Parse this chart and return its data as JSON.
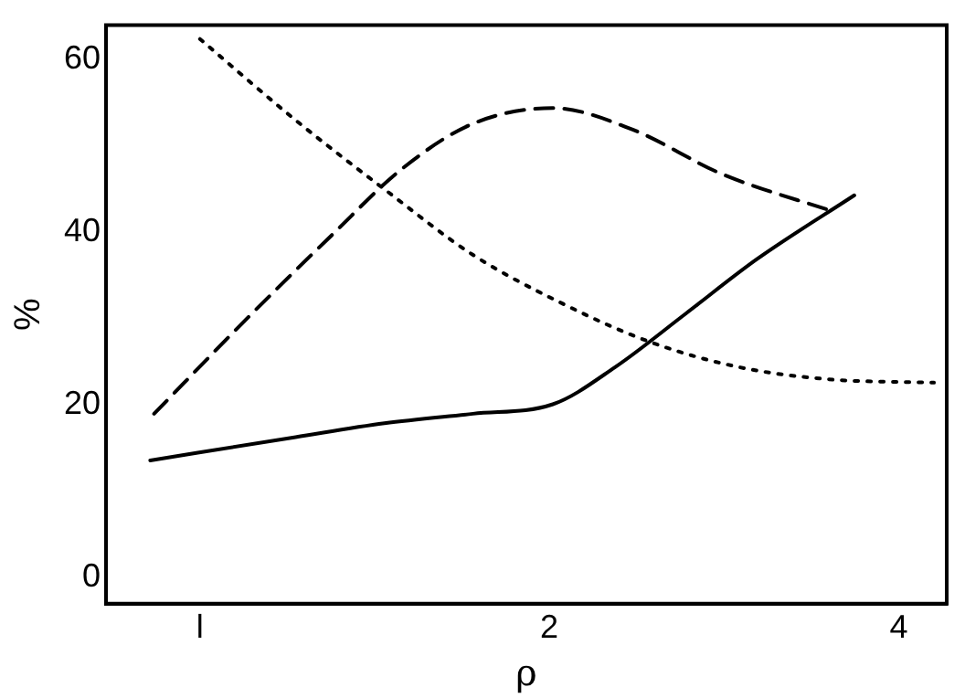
{
  "chart_data": {
    "type": "line",
    "xlabel": "ρ",
    "ylabel": "%",
    "log": "x",
    "xlim": [
      0.83,
      4.4
    ],
    "xticks": [
      {
        "value": 1,
        "label": "l"
      },
      2,
      4
    ],
    "ylim": [
      -3,
      64
    ],
    "yticks": [
      0,
      20,
      40,
      60
    ],
    "grid": false,
    "legend": false,
    "marker": "none",
    "series": [
      {
        "color": "#000000",
        "line_style": "dotted",
        "x": [
          1.0,
          1.209,
          1.442,
          1.719,
          2.05,
          2.444,
          2.914,
          3.475,
          4.29
        ],
        "values": [
          62.4,
          53,
          45,
          37.4,
          31.8,
          27.3,
          24.4,
          23,
          22.6
        ]
      },
      {
        "color": "#000000",
        "line_style": "dashed",
        "x": [
          0.913,
          1.088,
          1.297,
          1.494,
          1.719,
          2.014,
          2.36,
          2.813,
          3.536
        ],
        "values": [
          19,
          29.5,
          39.6,
          47.4,
          52.6,
          54.4,
          51.9,
          46.8,
          42.3
        ]
      },
      {
        "color": "#000000",
        "line_style": "solid",
        "x": [
          0.906,
          1.209,
          1.442,
          1.719,
          2.014,
          2.279,
          2.622,
          3.019,
          3.663
        ],
        "values": [
          13.6,
          16.3,
          17.9,
          19,
          20.1,
          24.4,
          30.6,
          36.9,
          44.3
        ]
      }
    ]
  }
}
